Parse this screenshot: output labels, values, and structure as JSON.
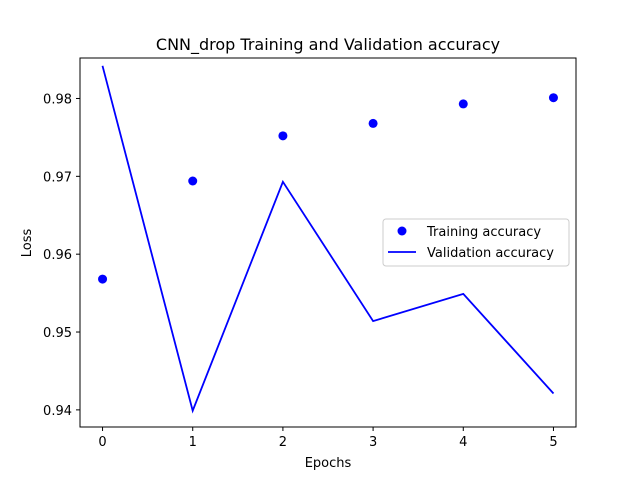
{
  "chart_data": {
    "type": "line",
    "title": "CNN_drop Training and Validation accuracy",
    "xlabel": "Epochs",
    "ylabel": "Loss",
    "x": [
      0,
      1,
      2,
      3,
      4,
      5
    ],
    "xlim": [
      -0.25,
      5.25
    ],
    "ylim": [
      0.9378,
      0.9852
    ],
    "xticks": [
      "0",
      "1",
      "2",
      "3",
      "4",
      "5"
    ],
    "yticks": [
      "0.94",
      "0.95",
      "0.96",
      "0.97",
      "0.98"
    ],
    "ytick_values": [
      0.94,
      0.95,
      0.96,
      0.97,
      0.98
    ],
    "grid": false,
    "legend_position": "center-right",
    "series": [
      {
        "name": "Training accuracy",
        "style": "points",
        "color": "#0000ff",
        "values": [
          0.9568,
          0.9694,
          0.9752,
          0.9768,
          0.9793,
          0.9801
        ]
      },
      {
        "name": "Validation accuracy",
        "style": "line",
        "color": "#0000ff",
        "values": [
          0.9842,
          0.9399,
          0.9693,
          0.9514,
          0.9549,
          0.9421
        ]
      }
    ]
  }
}
